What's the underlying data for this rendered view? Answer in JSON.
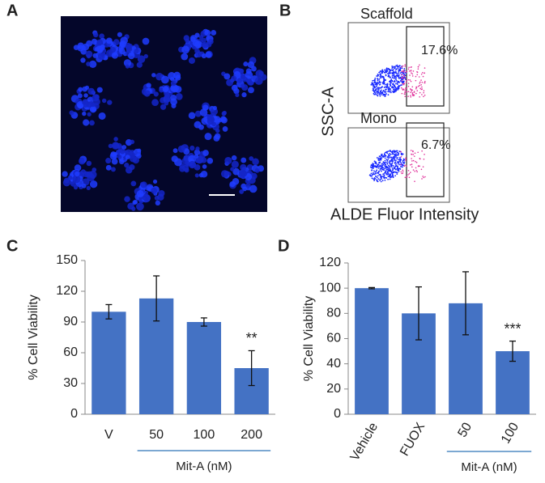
{
  "panel_labels": [
    "A",
    "B",
    "C",
    "D"
  ],
  "flow": {
    "top_title": "Scaffold",
    "top_percent": "17.6%",
    "bottom_title": "Mono",
    "bottom_percent": "6.7%",
    "y_label": "SSC-A",
    "x_label": "ALDE Fluor Intensity"
  },
  "chart_data": [
    {
      "type": "bar",
      "y_label": "% Cell Viability",
      "categories": [
        "V",
        "50",
        "100",
        "200"
      ],
      "values": [
        100,
        113,
        90,
        45
      ],
      "errors": [
        7,
        22,
        4,
        17
      ],
      "significance": [
        null,
        null,
        null,
        "**"
      ],
      "group_label": "Mit-A (nM)",
      "color": "#4472c4",
      "ylim": [
        0,
        150
      ],
      "yticks": [
        0,
        30,
        60,
        90,
        120,
        150
      ]
    },
    {
      "type": "bar",
      "y_label": "% Cell Viability",
      "categories": [
        "Vehicle",
        "FUOX",
        "50",
        "100"
      ],
      "values": [
        100,
        80,
        88,
        50
      ],
      "errors": [
        0.5,
        21,
        25,
        8
      ],
      "significance": [
        null,
        null,
        null,
        "***"
      ],
      "group_label": "Mit-A (nM)",
      "color": "#4472c4",
      "ylim": [
        0,
        120
      ],
      "yticks": [
        0,
        20,
        40,
        60,
        80,
        100,
        120
      ]
    }
  ]
}
